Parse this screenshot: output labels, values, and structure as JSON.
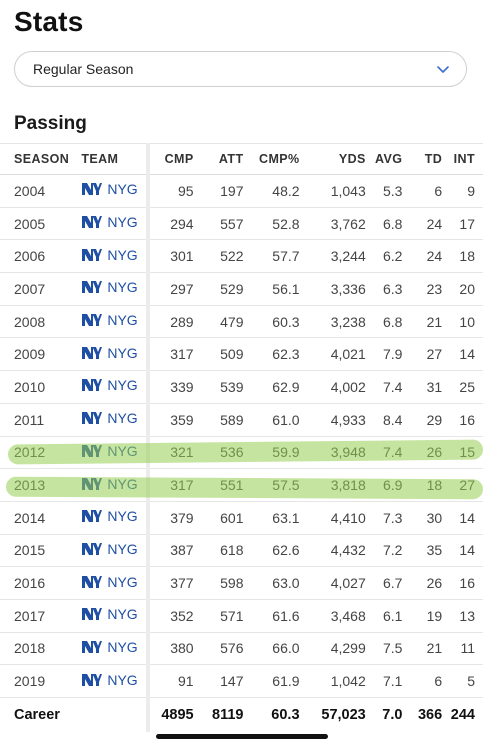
{
  "page": {
    "title": "Stats"
  },
  "season_select": {
    "value": "Regular Season",
    "icon": "chevron-down-icon"
  },
  "section": {
    "title": "Passing"
  },
  "table": {
    "headers": [
      "SEASON",
      "TEAM",
      "CMP",
      "ATT",
      "CMP%",
      "YDS",
      "AVG",
      "TD",
      "INT"
    ],
    "rows": [
      {
        "season": "2004",
        "team": "NYG",
        "cmp": "95",
        "att": "197",
        "pct": "48.2",
        "yds": "1,043",
        "avg": "5.3",
        "td": "6",
        "int": "9"
      },
      {
        "season": "2005",
        "team": "NYG",
        "cmp": "294",
        "att": "557",
        "pct": "52.8",
        "yds": "3,762",
        "avg": "6.8",
        "td": "24",
        "int": "17"
      },
      {
        "season": "2006",
        "team": "NYG",
        "cmp": "301",
        "att": "522",
        "pct": "57.7",
        "yds": "3,244",
        "avg": "6.2",
        "td": "24",
        "int": "18"
      },
      {
        "season": "2007",
        "team": "NYG",
        "cmp": "297",
        "att": "529",
        "pct": "56.1",
        "yds": "3,336",
        "avg": "6.3",
        "td": "23",
        "int": "20"
      },
      {
        "season": "2008",
        "team": "NYG",
        "cmp": "289",
        "att": "479",
        "pct": "60.3",
        "yds": "3,238",
        "avg": "6.8",
        "td": "21",
        "int": "10"
      },
      {
        "season": "2009",
        "team": "NYG",
        "cmp": "317",
        "att": "509",
        "pct": "62.3",
        "yds": "4,021",
        "avg": "7.9",
        "td": "27",
        "int": "14"
      },
      {
        "season": "2010",
        "team": "NYG",
        "cmp": "339",
        "att": "539",
        "pct": "62.9",
        "yds": "4,002",
        "avg": "7.4",
        "td": "31",
        "int": "25"
      },
      {
        "season": "2011",
        "team": "NYG",
        "cmp": "359",
        "att": "589",
        "pct": "61.0",
        "yds": "4,933",
        "avg": "8.4",
        "td": "29",
        "int": "16"
      },
      {
        "season": "2012",
        "team": "NYG",
        "cmp": "321",
        "att": "536",
        "pct": "59.9",
        "yds": "3,948",
        "avg": "7.4",
        "td": "26",
        "int": "15"
      },
      {
        "season": "2013",
        "team": "NYG",
        "cmp": "317",
        "att": "551",
        "pct": "57.5",
        "yds": "3,818",
        "avg": "6.9",
        "td": "18",
        "int": "27"
      },
      {
        "season": "2014",
        "team": "NYG",
        "cmp": "379",
        "att": "601",
        "pct": "63.1",
        "yds": "4,410",
        "avg": "7.3",
        "td": "30",
        "int": "14"
      },
      {
        "season": "2015",
        "team": "NYG",
        "cmp": "387",
        "att": "618",
        "pct": "62.6",
        "yds": "4,432",
        "avg": "7.2",
        "td": "35",
        "int": "14"
      },
      {
        "season": "2016",
        "team": "NYG",
        "cmp": "377",
        "att": "598",
        "pct": "63.0",
        "yds": "4,027",
        "avg": "6.7",
        "td": "26",
        "int": "16"
      },
      {
        "season": "2017",
        "team": "NYG",
        "cmp": "352",
        "att": "571",
        "pct": "61.6",
        "yds": "3,468",
        "avg": "6.1",
        "td": "19",
        "int": "13"
      },
      {
        "season": "2018",
        "team": "NYG",
        "cmp": "380",
        "att": "576",
        "pct": "66.0",
        "yds": "4,299",
        "avg": "7.5",
        "td": "21",
        "int": "11"
      },
      {
        "season": "2019",
        "team": "NYG",
        "cmp": "91",
        "att": "147",
        "pct": "61.9",
        "yds": "1,042",
        "avg": "7.1",
        "td": "6",
        "int": "5"
      }
    ],
    "career": {
      "label": "Career",
      "cmp": "4895",
      "att": "8119",
      "pct": "60.3",
      "yds": "57,023",
      "avg": "7.0",
      "td": "366",
      "int": "244"
    }
  },
  "team_logo_icon": "ny-giants-logo-icon",
  "colors": {
    "team_blue": "#1f4fa3",
    "highlight": "#96cd50"
  }
}
